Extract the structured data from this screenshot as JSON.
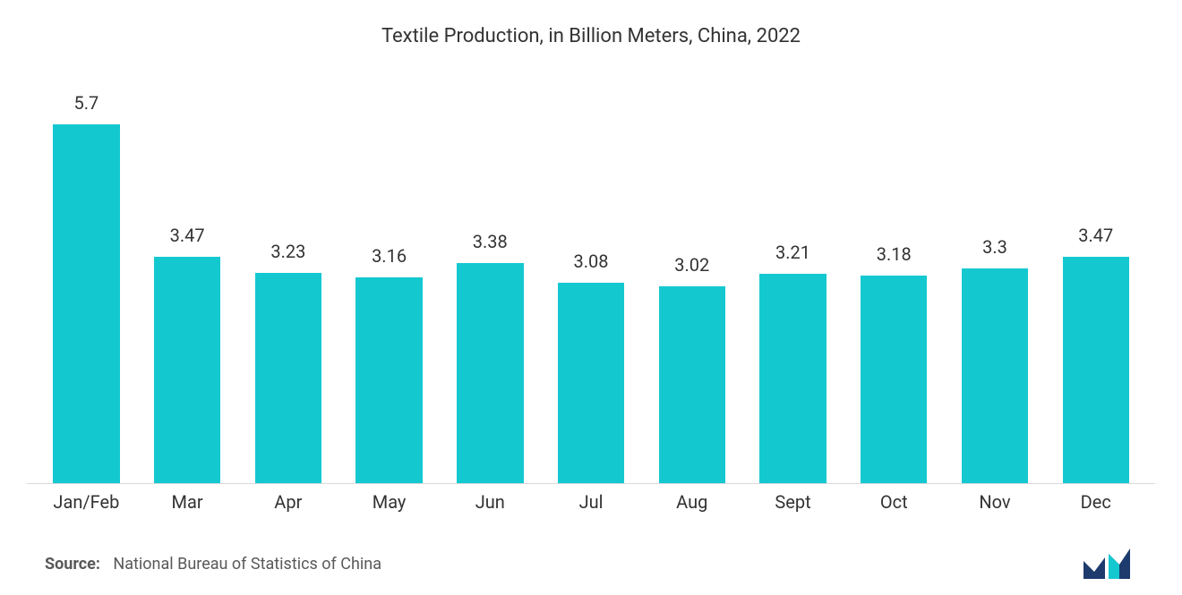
{
  "chart": {
    "type": "bar",
    "title": "Textile Production, in Billion Meters, China, 2022",
    "title_fontsize": 22,
    "title_color": "#333333",
    "categories": [
      "Jan/Feb",
      "Mar",
      "Apr",
      "May",
      "Jun",
      "Jul",
      "Aug",
      "Sept",
      "Oct",
      "Nov",
      "Dec"
    ],
    "values": [
      5.7,
      3.47,
      3.23,
      3.16,
      3.38,
      3.08,
      3.02,
      3.21,
      3.18,
      3.3,
      3.47
    ],
    "value_labels": [
      "5.7",
      "3.47",
      "3.23",
      "3.16",
      "3.38",
      "3.08",
      "3.02",
      "3.21",
      "3.18",
      "3.3",
      "3.47"
    ],
    "bar_color": "#14c8d0",
    "value_fontsize": 20,
    "value_color": "#333333",
    "xlabel_fontsize": 20,
    "xlabel_color": "#333333",
    "axis_line_color": "#d9d9d9",
    "background_color": "#ffffff",
    "y_max": 6.0,
    "bar_width_ratio": 0.66
  },
  "source": {
    "label": "Source:",
    "text": "National Bureau of Statistics of China",
    "fontsize": 18,
    "color": "#595959"
  },
  "logo": {
    "name": "mordor-intelligence-logo",
    "color_primary": "#1d3b6d",
    "color_accent": "#14c8d0"
  }
}
